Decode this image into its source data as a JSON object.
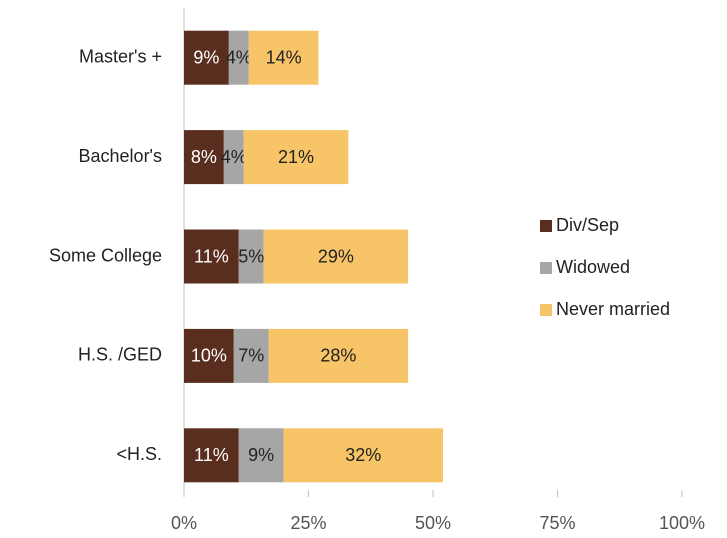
{
  "chart_data": {
    "type": "hbar-stacked",
    "categories": [
      "Master's +",
      "Bachelor's",
      "Some College",
      "H.S. /GED",
      "<H.S."
    ],
    "series": [
      {
        "name": "Div/Sep",
        "color": "#5a2e1f",
        "values": [
          9,
          8,
          11,
          10,
          11
        ],
        "value_labels": [
          "9%",
          "8%",
          "11%",
          "10%",
          "11%"
        ]
      },
      {
        "name": "Widowed",
        "color": "#a6a6a6",
        "values": [
          4,
          4,
          5,
          7,
          9
        ],
        "value_labels": [
          "4%",
          "4%",
          "5%",
          "7%",
          "9%"
        ]
      },
      {
        "name": "Never married",
        "color": "#f7c467",
        "values": [
          14,
          21,
          29,
          28,
          32
        ],
        "value_labels": [
          "14%",
          "21%",
          "29%",
          "28%",
          "32%"
        ]
      }
    ],
    "xlim": [
      0,
      100
    ],
    "xticks": [
      {
        "value": 0,
        "label": "0%"
      },
      {
        "value": 25,
        "label": "25%"
      },
      {
        "value": 50,
        "label": "50%"
      },
      {
        "value": 75,
        "label": "75%"
      },
      {
        "value": 100,
        "label": "100%"
      }
    ],
    "legend": "right"
  }
}
